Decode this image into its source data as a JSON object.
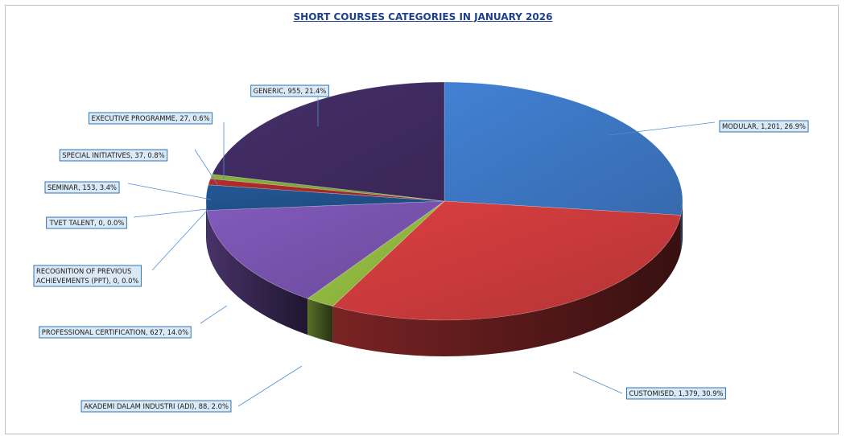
{
  "chart_data": {
    "type": "pie",
    "title": "SHORT COURSES CATEGORIES IN JANUARY 2026",
    "slices": [
      {
        "name": "MODULAR",
        "value": 1201,
        "percent": 26.9,
        "label": "MODULAR, 1,201, 26.9%",
        "color": "#3b73bd"
      },
      {
        "name": "CUSTOMISED",
        "value": 1379,
        "percent": 30.9,
        "label": "CUSTOMISED, 1,379, 30.9%",
        "color": "#c4383a"
      },
      {
        "name": "AKADEMI DALAM INDUSTRI (ADI)",
        "value": 88,
        "percent": 2.0,
        "label": "AKADEMI DALAM INDUSTRI (ADI), 88, 2.0%",
        "color": "#8cb33e"
      },
      {
        "name": "PROFESSIONAL CERTIFICATION",
        "value": 627,
        "percent": 14.0,
        "label": "PROFESSIONAL CERTIFICATION, 627, 14.0%",
        "color": "#7450a8"
      },
      {
        "name": "RECOGNITION OF PREVIOUS ACHIEVEMENTS (PPT)",
        "value": 0,
        "percent": 0.0,
        "label": "RECOGNITION OF PREVIOUS ACHIEVEMENTS (PPT), 0, 0.0%",
        "color": "#2aa0b8"
      },
      {
        "name": "TVET TALENT",
        "value": 0,
        "percent": 0.0,
        "label": "TVET TALENT, 0, 0.0%",
        "color": "#e08a2a"
      },
      {
        "name": "SEMINAR",
        "value": 153,
        "percent": 3.4,
        "label": "SEMINAR, 153, 3.4%",
        "color": "#1f4f86"
      },
      {
        "name": "SPECIAL INITIATIVES",
        "value": 37,
        "percent": 0.8,
        "label": "SPECIAL INITIATIVES, 37, 0.8%",
        "color": "#a02828"
      },
      {
        "name": "EXECUTIVE PROGRAMME",
        "value": 27,
        "percent": 0.6,
        "label": "EXECUTIVE PROGRAMME, 27, 0.6%",
        "color": "#7aa03a"
      },
      {
        "name": "GENERIC",
        "value": 955,
        "percent": 21.4,
        "label": "GENERIC, 955, 21.4%",
        "color": "#3e2a5e"
      }
    ]
  }
}
